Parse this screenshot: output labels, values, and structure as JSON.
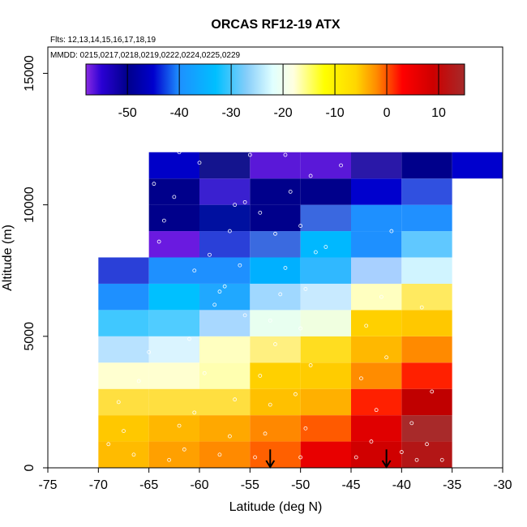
{
  "chart_data": {
    "type": "heatmap",
    "title": "ORCAS RF12-19 ATX",
    "flights_label": "Flts: 12,13,14,15,16,17,18,19",
    "dates_label": "MMDD: 0215,0217,0218,0219,0222,0224,0225,0229",
    "xlabel": "Latitude (deg N)",
    "ylabel": "Altitude (m)",
    "xlim": [
      -75,
      -30
    ],
    "ylim": [
      0,
      16000
    ],
    "xticks": [
      -75,
      -70,
      -65,
      -60,
      -55,
      -50,
      -45,
      -40,
      -35,
      -30
    ],
    "yticks": [
      0,
      5000,
      10000,
      15000
    ],
    "colorbar": {
      "range": [
        -58,
        15
      ],
      "ticks": [
        -50,
        -40,
        -30,
        -20,
        -10,
        0,
        10
      ],
      "gradient": [
        [
          -58,
          "#8a2be2"
        ],
        [
          -55,
          "#2a00d4"
        ],
        [
          -50,
          "#00008b"
        ],
        [
          -45,
          "#0000cd"
        ],
        [
          -40,
          "#1e90ff"
        ],
        [
          -33,
          "#00bfff"
        ],
        [
          -27,
          "#87cefa"
        ],
        [
          -22,
          "#e0ffff"
        ],
        [
          -18,
          "#ffffe0"
        ],
        [
          -12,
          "#ffff00"
        ],
        [
          -6,
          "#ffd700"
        ],
        [
          -2,
          "#ff8c00"
        ],
        [
          3,
          "#ff0000"
        ],
        [
          9,
          "#cd0000"
        ],
        [
          15,
          "#a52a2a"
        ]
      ]
    },
    "cell_width_deg": 5,
    "cell_height_m": 1000,
    "cells": [
      {
        "lon": -70,
        "alt": 0,
        "color": "#ffbb00"
      },
      {
        "lon": -65,
        "alt": 0,
        "color": "#ffa000"
      },
      {
        "lon": -60,
        "alt": 0,
        "color": "#ff8a00"
      },
      {
        "lon": -55,
        "alt": 0,
        "color": "#ff6000"
      },
      {
        "lon": -50,
        "alt": 0,
        "color": "#e80000"
      },
      {
        "lon": -45,
        "alt": 0,
        "color": "#d00000"
      },
      {
        "lon": -40,
        "alt": 0,
        "color": "#b31616"
      },
      {
        "lon": -70,
        "alt": 1000,
        "color": "#ffc800"
      },
      {
        "lon": -65,
        "alt": 1000,
        "color": "#ffb700"
      },
      {
        "lon": -60,
        "alt": 1000,
        "color": "#ffa800"
      },
      {
        "lon": -55,
        "alt": 1000,
        "color": "#ff8800"
      },
      {
        "lon": -50,
        "alt": 1000,
        "color": "#ff5a00"
      },
      {
        "lon": -45,
        "alt": 1000,
        "color": "#e00000"
      },
      {
        "lon": -40,
        "alt": 1000,
        "color": "#a82a2a"
      },
      {
        "lon": -70,
        "alt": 2000,
        "color": "#ffdf40"
      },
      {
        "lon": -65,
        "alt": 2000,
        "color": "#ffdf40"
      },
      {
        "lon": -60,
        "alt": 2000,
        "color": "#ffdf40"
      },
      {
        "lon": -55,
        "alt": 2000,
        "color": "#ffc000"
      },
      {
        "lon": -50,
        "alt": 2000,
        "color": "#ffb000"
      },
      {
        "lon": -45,
        "alt": 2000,
        "color": "#ff2000"
      },
      {
        "lon": -40,
        "alt": 2000,
        "color": "#c00000"
      },
      {
        "lon": -70,
        "alt": 3000,
        "color": "#ffffd0"
      },
      {
        "lon": -65,
        "alt": 3000,
        "color": "#ffffd0"
      },
      {
        "lon": -60,
        "alt": 3000,
        "color": "#ffffb0"
      },
      {
        "lon": -55,
        "alt": 3000,
        "color": "#ffd000"
      },
      {
        "lon": -50,
        "alt": 3000,
        "color": "#ffcc00"
      },
      {
        "lon": -45,
        "alt": 3000,
        "color": "#ff8c00"
      },
      {
        "lon": -40,
        "alt": 3000,
        "color": "#ff2000"
      },
      {
        "lon": -70,
        "alt": 4000,
        "color": "#b8e2ff"
      },
      {
        "lon": -65,
        "alt": 4000,
        "color": "#daf4ff"
      },
      {
        "lon": -60,
        "alt": 4000,
        "color": "#ffffc0"
      },
      {
        "lon": -55,
        "alt": 4000,
        "color": "#fff080"
      },
      {
        "lon": -50,
        "alt": 4000,
        "color": "#ffdd20"
      },
      {
        "lon": -45,
        "alt": 4000,
        "color": "#ffb800"
      },
      {
        "lon": -40,
        "alt": 4000,
        "color": "#ff8a00"
      },
      {
        "lon": -70,
        "alt": 5000,
        "color": "#40c8ff"
      },
      {
        "lon": -65,
        "alt": 5000,
        "color": "#50ccff"
      },
      {
        "lon": -60,
        "alt": 5000,
        "color": "#a8d8ff"
      },
      {
        "lon": -55,
        "alt": 5000,
        "color": "#e8fff0"
      },
      {
        "lon": -50,
        "alt": 5000,
        "color": "#f0ffe0"
      },
      {
        "lon": -45,
        "alt": 5000,
        "color": "#ffd000"
      },
      {
        "lon": -40,
        "alt": 5000,
        "color": "#ffc800"
      },
      {
        "lon": -70,
        "alt": 6000,
        "color": "#1e90ff"
      },
      {
        "lon": -65,
        "alt": 6000,
        "color": "#00c0ff"
      },
      {
        "lon": -60,
        "alt": 6000,
        "color": "#20a8ff"
      },
      {
        "lon": -55,
        "alt": 6000,
        "color": "#a0d8ff"
      },
      {
        "lon": -50,
        "alt": 6000,
        "color": "#c8eaff"
      },
      {
        "lon": -45,
        "alt": 6000,
        "color": "#ffffc0"
      },
      {
        "lon": -40,
        "alt": 6000,
        "color": "#ffea60"
      },
      {
        "lon": -70,
        "alt": 7000,
        "color": "#2a40d8"
      },
      {
        "lon": -65,
        "alt": 7000,
        "color": "#1e90ff"
      },
      {
        "lon": -60,
        "alt": 7000,
        "color": "#1e90ff"
      },
      {
        "lon": -55,
        "alt": 7000,
        "color": "#00b0ff"
      },
      {
        "lon": -50,
        "alt": 7000,
        "color": "#30b8ff"
      },
      {
        "lon": -45,
        "alt": 7000,
        "color": "#a8d0ff"
      },
      {
        "lon": -40,
        "alt": 7000,
        "color": "#d0f4ff"
      },
      {
        "lon": -65,
        "alt": 8000,
        "color": "#6a1ae0"
      },
      {
        "lon": -60,
        "alt": 8000,
        "color": "#2a40d8"
      },
      {
        "lon": -55,
        "alt": 8000,
        "color": "#3a6ae0"
      },
      {
        "lon": -50,
        "alt": 8000,
        "color": "#00b8ff"
      },
      {
        "lon": -45,
        "alt": 8000,
        "color": "#1e90ff"
      },
      {
        "lon": -40,
        "alt": 8000,
        "color": "#60c8ff"
      },
      {
        "lon": -65,
        "alt": 9000,
        "color": "#00008b"
      },
      {
        "lon": -60,
        "alt": 9000,
        "color": "#0010a0"
      },
      {
        "lon": -55,
        "alt": 9000,
        "color": "#00008b"
      },
      {
        "lon": -50,
        "alt": 9000,
        "color": "#3a68e0"
      },
      {
        "lon": -45,
        "alt": 9000,
        "color": "#1e90ff"
      },
      {
        "lon": -40,
        "alt": 9000,
        "color": "#2090ff"
      },
      {
        "lon": -65,
        "alt": 10000,
        "color": "#00008b"
      },
      {
        "lon": -60,
        "alt": 10000,
        "color": "#3a20d0"
      },
      {
        "lon": -55,
        "alt": 10000,
        "color": "#00008b"
      },
      {
        "lon": -50,
        "alt": 10000,
        "color": "#00008b"
      },
      {
        "lon": -45,
        "alt": 10000,
        "color": "#0000cd"
      },
      {
        "lon": -40,
        "alt": 10000,
        "color": "#3050e0"
      },
      {
        "lon": -65,
        "alt": 11000,
        "color": "#0000c8"
      },
      {
        "lon": -60,
        "alt": 11000,
        "color": "#14148e"
      },
      {
        "lon": -55,
        "alt": 11000,
        "color": "#5a18d8"
      },
      {
        "lon": -50,
        "alt": 11000,
        "color": "#5a18d8"
      },
      {
        "lon": -45,
        "alt": 11000,
        "color": "#2a18a8"
      },
      {
        "lon": -40,
        "alt": 11000,
        "color": "#00008b"
      },
      {
        "lon": -35,
        "alt": 11000,
        "color": "#0000cd"
      }
    ],
    "arrows_lat": [
      -53,
      -41.5
    ],
    "sample_points": [
      [
        -69,
        900
      ],
      [
        -67.5,
        1400
      ],
      [
        -66.5,
        500
      ],
      [
        -68,
        2500
      ],
      [
        -66,
        3300
      ],
      [
        -65,
        4400
      ],
      [
        -63,
        300
      ],
      [
        -62,
        1600
      ],
      [
        -61.5,
        700
      ],
      [
        -60.5,
        2100
      ],
      [
        -59.5,
        3600
      ],
      [
        -61,
        4900
      ],
      [
        -58,
        500
      ],
      [
        -57,
        1200
      ],
      [
        -56.5,
        2600
      ],
      [
        -58.5,
        6200
      ],
      [
        -57.5,
        6900
      ],
      [
        -56,
        7700
      ],
      [
        -54.5,
        400
      ],
      [
        -53.5,
        1300
      ],
      [
        -53,
        2400
      ],
      [
        -54,
        3500
      ],
      [
        -52.5,
        4700
      ],
      [
        -53,
        5600
      ],
      [
        -52,
        6600
      ],
      [
        -51.5,
        7600
      ],
      [
        -52.5,
        8900
      ],
      [
        -54,
        9700
      ],
      [
        -55.5,
        10100
      ],
      [
        -51,
        10500
      ],
      [
        -50,
        400
      ],
      [
        -49.5,
        1500
      ],
      [
        -50.5,
        2800
      ],
      [
        -49,
        3900
      ],
      [
        -50,
        5300
      ],
      [
        -49.5,
        6800
      ],
      [
        -48.5,
        8200
      ],
      [
        -50,
        9200
      ],
      [
        -49,
        11100
      ],
      [
        -51.5,
        11900
      ],
      [
        -46,
        11500
      ],
      [
        -47.5,
        8400
      ],
      [
        -44.5,
        400
      ],
      [
        -43,
        1000
      ],
      [
        -42.5,
        2200
      ],
      [
        -44,
        3400
      ],
      [
        -43.5,
        5400
      ],
      [
        -42,
        6500
      ],
      [
        -41,
        9000
      ],
      [
        -40,
        600
      ],
      [
        -38.5,
        300
      ],
      [
        -37.5,
        900
      ],
      [
        -39,
        1700
      ],
      [
        -37,
        2900
      ],
      [
        -41.5,
        4200
      ],
      [
        -38,
        6100
      ],
      [
        -36,
        300
      ],
      [
        -35.5,
        12100
      ],
      [
        -60,
        11600
      ],
      [
        -63.5,
        9400
      ],
      [
        -62.5,
        10300
      ],
      [
        -64,
        8600
      ],
      [
        -60.5,
        7500
      ],
      [
        -59,
        8100
      ],
      [
        -57,
        9000
      ],
      [
        -55,
        11900
      ],
      [
        -66,
        11700
      ],
      [
        -64.5,
        10800
      ],
      [
        -62,
        12000
      ],
      [
        -56.5,
        10000
      ],
      [
        -58,
        6700
      ],
      [
        -55.5,
        5800
      ]
    ]
  }
}
